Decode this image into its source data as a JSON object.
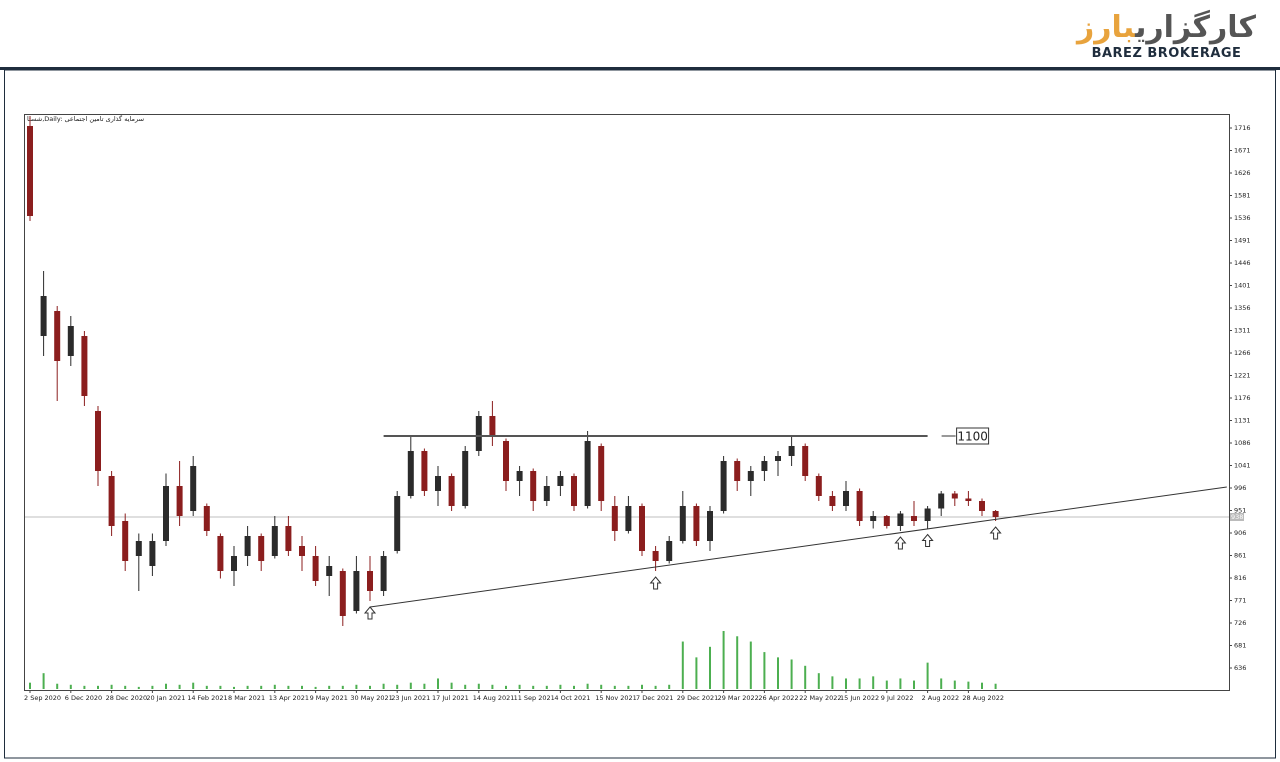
{
  "header": {
    "logo_text": "کارگزاری",
    "logo_highlight": "بارز",
    "logo_subtitle": "BAREZ BROKERAGE"
  },
  "chart_data": {
    "type": "candlestick",
    "title": "شستا,Daily: سرمایه گذاری تامین اجتماعی",
    "categories": [
      "2 Sep 2020",
      null,
      null,
      "6 Dec 2020",
      null,
      null,
      "28 Dec 2020",
      null,
      null,
      "20 Jan 2021",
      null,
      null,
      "14 Feb 2021",
      null,
      null,
      "8 Mar 2021",
      null,
      null,
      "13 Apr 2021",
      null,
      null,
      "9 May 2021",
      null,
      null,
      "30 May 2021",
      null,
      null,
      "23 Jun 2021",
      null,
      null,
      "17 Jul 2021",
      null,
      null,
      "14 Aug 2021",
      null,
      null,
      "11 Sep 2021",
      null,
      null,
      "4 Oct 2021",
      null,
      null,
      "15 Nov 2021",
      null,
      null,
      "7 Dec 2021",
      null,
      null,
      "29 Dec 2021",
      null,
      null,
      "29 Mar 2022",
      null,
      null,
      "26 Apr 2022",
      null,
      null,
      "22 May 2022",
      null,
      null,
      "15 Jun 2022",
      null,
      null,
      "9 Jul 2022",
      null,
      null,
      "2 Aug 2022",
      null,
      null,
      "28 Aug 2022",
      null,
      null
    ],
    "open": [
      1720,
      1300,
      1350,
      1260,
      1300,
      1150,
      1020,
      930,
      860,
      840,
      890,
      1000,
      950,
      960,
      900,
      830,
      860,
      900,
      860,
      920,
      880,
      860,
      820,
      830,
      750,
      830,
      790,
      870,
      980,
      1070,
      990,
      1020,
      960,
      1070,
      1140,
      1090,
      1010,
      1030,
      970,
      1000,
      1020,
      960,
      1080,
      960,
      910,
      960,
      870,
      850,
      890,
      960,
      890,
      950,
      1050,
      1010,
      1030,
      1050,
      1060,
      1080,
      1020,
      980,
      960,
      990,
      930,
      940,
      920,
      940,
      930,
      955,
      985,
      975,
      970,
      950
    ],
    "high": [
      1740,
      1430,
      1360,
      1340,
      1310,
      1160,
      1030,
      945,
      905,
      905,
      1025,
      1050,
      1060,
      965,
      905,
      880,
      920,
      905,
      940,
      940,
      900,
      880,
      860,
      835,
      860,
      860,
      870,
      990,
      1100,
      1075,
      1040,
      1025,
      1080,
      1150,
      1170,
      1095,
      1040,
      1035,
      1020,
      1030,
      1025,
      1110,
      1085,
      980,
      980,
      965,
      880,
      900,
      990,
      965,
      960,
      1060,
      1055,
      1040,
      1060,
      1070,
      1100,
      1085,
      1025,
      990,
      1010,
      995,
      950,
      942,
      950,
      970,
      960,
      990,
      990,
      990,
      975,
      952
    ],
    "low": [
      1530,
      1260,
      1170,
      1240,
      1160,
      1000,
      900,
      830,
      790,
      820,
      880,
      920,
      940,
      900,
      815,
      800,
      840,
      830,
      855,
      860,
      830,
      800,
      780,
      720,
      745,
      770,
      780,
      865,
      975,
      980,
      960,
      950,
      955,
      1060,
      1080,
      990,
      980,
      950,
      960,
      980,
      950,
      955,
      950,
      890,
      905,
      860,
      830,
      845,
      885,
      880,
      870,
      945,
      990,
      980,
      1010,
      1020,
      1040,
      1010,
      970,
      950,
      950,
      920,
      915,
      915,
      910,
      920,
      915,
      940,
      960,
      960,
      940,
      930
    ],
    "close": [
      1540,
      1380,
      1250,
      1320,
      1180,
      1030,
      920,
      850,
      890,
      890,
      1000,
      940,
      1040,
      910,
      830,
      860,
      900,
      850,
      920,
      870,
      860,
      810,
      840,
      740,
      830,
      790,
      860,
      980,
      1070,
      990,
      1020,
      960,
      1070,
      1140,
      1100,
      1010,
      1030,
      970,
      1000,
      1020,
      960,
      1090,
      970,
      910,
      960,
      870,
      850,
      890,
      960,
      890,
      950,
      1050,
      1010,
      1030,
      1050,
      1060,
      1080,
      1020,
      980,
      960,
      990,
      930,
      940,
      920,
      945,
      930,
      955,
      985,
      975,
      970,
      950,
      938
    ],
    "volume": [
      6,
      15,
      5,
      4,
      3,
      3,
      4,
      3,
      2,
      3,
      5,
      4,
      6,
      3,
      3,
      2,
      3,
      3,
      4,
      3,
      3,
      2,
      3,
      3,
      4,
      3,
      5,
      4,
      6,
      5,
      10,
      6,
      4,
      5,
      4,
      3,
      4,
      3,
      3,
      4,
      3,
      5,
      4,
      3,
      3,
      4,
      3,
      4,
      45,
      30,
      40,
      55,
      50,
      45,
      35,
      30,
      28,
      22,
      15,
      12,
      10,
      10,
      12,
      8,
      10,
      8,
      25,
      10,
      8,
      7,
      6,
      5
    ],
    "up_color": "#2b2b2b",
    "down_color": "#8b1e1e",
    "volume_color": "#4caf50",
    "ylim": [
      592,
      1744
    ],
    "yticks": [
      1716,
      1671,
      1626,
      1581,
      1536,
      1491,
      1446,
      1401,
      1356,
      1311,
      1266,
      1221,
      1176,
      1131,
      1086,
      1041,
      996,
      951,
      906,
      861,
      816,
      771,
      726,
      681,
      636
    ],
    "current_price": 938,
    "resistance": {
      "value": 1100,
      "from": 26,
      "to": 66
    },
    "trendline": {
      "x": [
        25,
        88
      ],
      "y": [
        758,
        998
      ]
    },
    "arrows": [
      25,
      46,
      64,
      66,
      71
    ]
  }
}
